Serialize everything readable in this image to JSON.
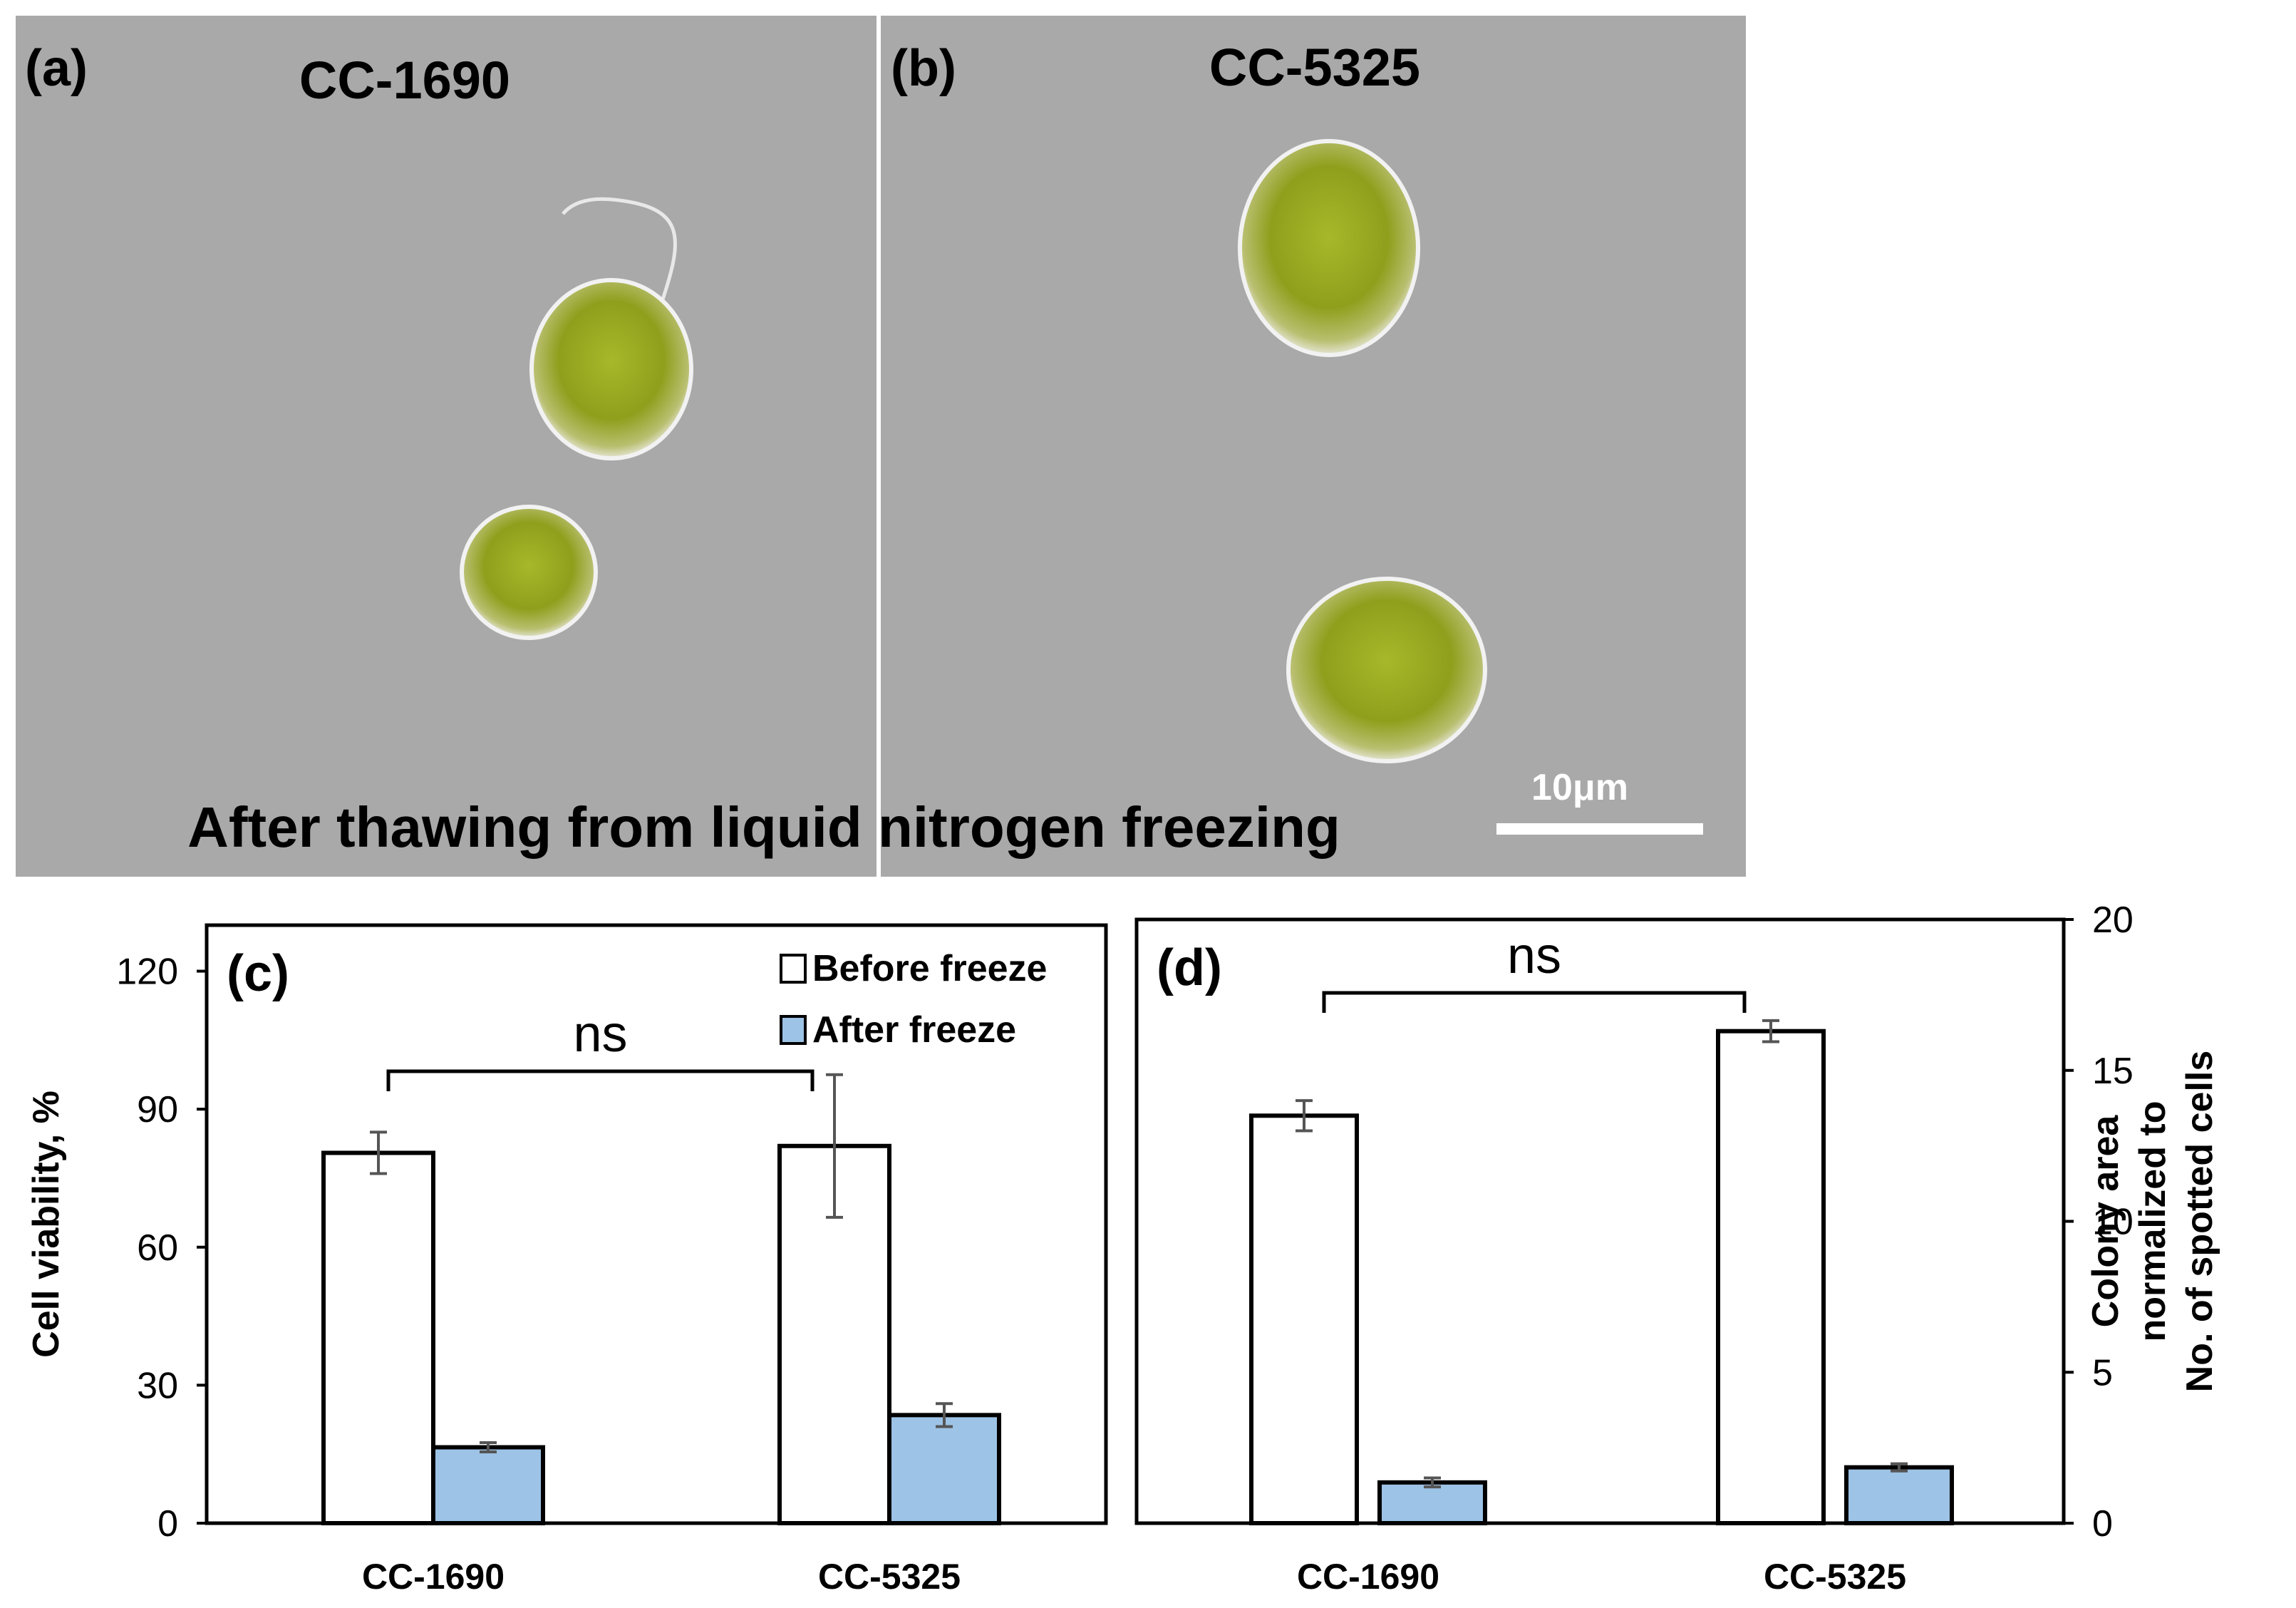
{
  "panels": {
    "a": {
      "label": "(a)",
      "title": "CC-1690"
    },
    "b": {
      "label": "(b)",
      "title": "CC-5325"
    },
    "caption": "After thawing from liquid nitrogen freezing",
    "scale_bar": "10μm"
  },
  "colors": {
    "before": "#ffffff",
    "after": "#9dc3e6",
    "micro_bg": "#a9a9a9",
    "cell_green": "#9aa81f"
  },
  "chart_data": [
    {
      "type": "bar",
      "panel_label": "(c)",
      "categories": [
        "CC-1690",
        "CC-5325"
      ],
      "series": [
        {
          "name": "Before freeze",
          "values": [
            80.5,
            82
          ],
          "errors": [
            4.5,
            15.5
          ]
        },
        {
          "name": "After freeze",
          "values": [
            16.5,
            23.5
          ],
          "errors": [
            1,
            2.5
          ]
        }
      ],
      "ylabel": "Cell viability, %",
      "ylim": [
        0,
        130
      ],
      "yticks": [
        0,
        30,
        60,
        90,
        120
      ],
      "annotation": "ns",
      "legend": "top-right"
    },
    {
      "type": "bar",
      "panel_label": "(d)",
      "categories": [
        "CC-1690",
        "CC-5325"
      ],
      "series": [
        {
          "values": [
            13.5,
            16.3
          ],
          "errors": [
            0.5,
            0.35
          ]
        },
        {
          "values": [
            1.35,
            1.85
          ],
          "errors": [
            0.15,
            0.12
          ]
        }
      ],
      "ylabel": [
        "Colony area",
        "normalized to",
        "No. of spotted cells"
      ],
      "ylim": [
        0,
        20
      ],
      "yticks": [
        0,
        5,
        10,
        15,
        20
      ],
      "annotation": "ns",
      "y_axis_side": "right"
    }
  ]
}
